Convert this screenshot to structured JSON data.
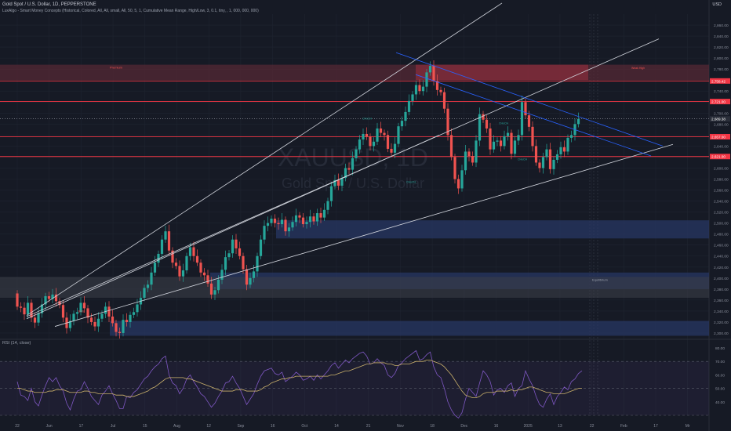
{
  "header": {
    "title": "Gold Spot / U.S. Dollar, 1D, PEPPERSTONE",
    "indicator": "LuxAlgo - Smart Money Concepts (Historical, Colored, All, All, small, All, 50, 5, 1, Cumulative Mean Range, High/Low, 3, 0.1, tiny, , 1, 000, 000, 000)",
    "currency": "USD"
  },
  "watermark": {
    "symbol": "XAUUSD, 1D",
    "name": "Gold Spot / U.S. Dollar"
  },
  "colors": {
    "background": "#161a25",
    "bull": "#26a69a",
    "bear": "#ef5350",
    "level_line": "#f23645",
    "demand_zone": "#2a3a6b",
    "supply_zone": "#5e2a35",
    "rsi_line": "#7e57c2",
    "rsi_ma": "#c9b06b"
  },
  "chart_data": [
    {
      "type": "candlestick",
      "title": "Gold Spot / U.S. Dollar, 1D, PEPPERSTONE",
      "ylim": [
        2290,
        2880
      ],
      "y_ticks": [
        2300,
        2320,
        2340,
        2360,
        2380,
        2400,
        2420,
        2440,
        2460,
        2480,
        2500,
        2520,
        2540,
        2560,
        2580,
        2600,
        2620,
        2640,
        2660,
        2680,
        2700,
        2720,
        2740,
        2760,
        2780,
        2800,
        2820,
        2840,
        2860
      ],
      "x_ticks": [
        "22",
        "Jun",
        "17",
        "Jul",
        "15",
        "Aug",
        "12",
        "Sep",
        "16",
        "Oct",
        "14",
        "21",
        "Nov",
        "18",
        "Dec",
        "16",
        "2025",
        "13",
        "22",
        "Feb",
        "17",
        "Mr"
      ],
      "price_labels": [
        {
          "label": "2,758.42",
          "value": 2758.4
        },
        {
          "label": "2,721.00",
          "value": 2721
        },
        {
          "label": "2,689.38",
          "value": 2689.4
        },
        {
          "label": "2,657.00",
          "value": 2657
        },
        {
          "label": "2,621.00",
          "value": 2621
        }
      ],
      "horizontal_levels": [
        2758.4,
        2721,
        2657,
        2621
      ],
      "zones": [
        {
          "kind": "supply",
          "top": 2788,
          "bottom": 2760,
          "start": "Oct 1",
          "label": "Premium"
        },
        {
          "kind": "demand",
          "top": 2505,
          "bottom": 2472,
          "start": "Sep 1"
        },
        {
          "kind": "demand",
          "top": 2410,
          "bottom": 2380,
          "start": "Aug 12"
        },
        {
          "kind": "demand",
          "top": 2322,
          "bottom": 2295,
          "start": "Jul 8"
        },
        {
          "kind": "equilibrium",
          "top": 2402,
          "bottom": 2364,
          "start": "May 22",
          "label": "Equilibrium"
        }
      ],
      "annotations": [
        "Premium",
        "Equilibrium",
        "Weak High",
        "CHoCH",
        "BOS"
      ],
      "candles": {
        "start_index": 0,
        "o": [
          2372,
          2348,
          2346,
          2334,
          2355,
          2328,
          2319,
          2336,
          2352,
          2367,
          2362,
          2370,
          2358,
          2351,
          2328,
          2309,
          2322,
          2335,
          2338,
          2355,
          2345,
          2328,
          2320,
          2312,
          2326,
          2335,
          2348,
          2330,
          2318,
          2302,
          2300,
          2324,
          2320,
          2333,
          2338,
          2352,
          2364,
          2382,
          2388,
          2410,
          2428,
          2444,
          2470,
          2485,
          2450,
          2428,
          2422,
          2403,
          2414,
          2440,
          2456,
          2440,
          2428,
          2410,
          2405,
          2390,
          2370,
          2378,
          2397,
          2415,
          2438,
          2445,
          2470,
          2454,
          2440,
          2416,
          2388,
          2400,
          2412,
          2440,
          2470,
          2495,
          2500,
          2508,
          2500,
          2498,
          2506,
          2485,
          2492,
          2502,
          2514,
          2510,
          2498,
          2502,
          2512,
          2503,
          2518,
          2510,
          2524,
          2540,
          2567,
          2578,
          2568,
          2582,
          2600,
          2597,
          2618,
          2634,
          2652,
          2662,
          2657,
          2640,
          2648,
          2672,
          2664,
          2660,
          2635,
          2628,
          2644,
          2676,
          2686,
          2702,
          2722,
          2734,
          2751,
          2740,
          2748,
          2774,
          2786,
          2758,
          2742,
          2738,
          2708,
          2660,
          2620,
          2580,
          2563,
          2596,
          2630,
          2622,
          2610,
          2650,
          2698,
          2688,
          2672,
          2634,
          2648,
          2650,
          2640,
          2658,
          2664,
          2626,
          2650,
          2660,
          2720,
          2696,
          2675,
          2640,
          2610,
          2600,
          2620,
          2634,
          2598,
          2615,
          2625,
          2638,
          2630,
          2655,
          2660,
          2680
        ],
        "c": [
          2348,
          2346,
          2334,
          2355,
          2328,
          2319,
          2336,
          2352,
          2367,
          2362,
          2370,
          2358,
          2351,
          2328,
          2309,
          2322,
          2335,
          2338,
          2355,
          2345,
          2328,
          2320,
          2312,
          2326,
          2335,
          2348,
          2330,
          2318,
          2302,
          2300,
          2324,
          2320,
          2333,
          2338,
          2352,
          2364,
          2382,
          2388,
          2410,
          2428,
          2444,
          2470,
          2485,
          2450,
          2428,
          2422,
          2403,
          2414,
          2440,
          2456,
          2440,
          2428,
          2410,
          2405,
          2390,
          2370,
          2378,
          2397,
          2415,
          2438,
          2445,
          2470,
          2454,
          2440,
          2416,
          2388,
          2400,
          2412,
          2440,
          2470,
          2495,
          2500,
          2508,
          2500,
          2498,
          2506,
          2485,
          2492,
          2502,
          2514,
          2510,
          2498,
          2502,
          2512,
          2503,
          2518,
          2510,
          2524,
          2540,
          2567,
          2578,
          2568,
          2582,
          2600,
          2597,
          2618,
          2634,
          2652,
          2662,
          2657,
          2640,
          2648,
          2672,
          2664,
          2660,
          2635,
          2628,
          2644,
          2676,
          2686,
          2702,
          2722,
          2734,
          2751,
          2740,
          2748,
          2774,
          2786,
          2758,
          2742,
          2738,
          2708,
          2660,
          2620,
          2580,
          2563,
          2596,
          2630,
          2622,
          2610,
          2650,
          2698,
          2688,
          2672,
          2634,
          2648,
          2650,
          2640,
          2658,
          2664,
          2626,
          2650,
          2660,
          2720,
          2696,
          2675,
          2640,
          2610,
          2600,
          2620,
          2634,
          2598,
          2615,
          2625,
          2638,
          2630,
          2655,
          2660,
          2680,
          2689
        ]
      }
    },
    {
      "type": "line",
      "title": "RSI (14, close)",
      "ylim": [
        30,
        80
      ],
      "y_ticks": [
        40,
        50,
        60,
        70,
        80
      ],
      "bands": [
        30,
        70
      ],
      "series": [
        {
          "name": "RSI",
          "values": [
            55,
            45,
            44,
            41,
            50,
            40,
            37,
            45,
            52,
            58,
            55,
            58,
            52,
            48,
            39,
            34,
            42,
            48,
            49,
            55,
            50,
            44,
            41,
            38,
            45,
            48,
            52,
            46,
            41,
            35,
            35,
            44,
            43,
            47,
            49,
            53,
            57,
            59,
            63,
            66,
            68,
            72,
            74,
            60,
            54,
            52,
            46,
            50,
            57,
            60,
            55,
            51,
            46,
            44,
            40,
            36,
            39,
            44,
            48,
            54,
            55,
            59,
            54,
            50,
            44,
            38,
            42,
            46,
            53,
            59,
            63,
            64,
            65,
            61,
            60,
            62,
            55,
            57,
            59,
            62,
            60,
            56,
            57,
            59,
            56,
            60,
            57,
            60,
            63,
            67,
            69,
            65,
            68,
            71,
            69,
            72,
            74,
            76,
            77,
            74,
            68,
            69,
            72,
            69,
            67,
            60,
            58,
            61,
            67,
            69,
            72,
            74,
            76,
            78,
            71,
            72,
            75,
            77,
            66,
            60,
            58,
            50,
            40,
            34,
            30,
            28,
            32,
            42,
            50,
            47,
            44,
            54,
            63,
            60,
            55,
            45,
            49,
            50,
            47,
            52,
            54,
            44,
            50,
            52,
            63,
            57,
            52,
            44,
            38,
            36,
            42,
            46,
            38,
            44,
            47,
            51,
            49,
            55,
            57,
            61,
            63
          ]
        },
        {
          "name": "RSI-based MA",
          "values": [
            50,
            50,
            49,
            48,
            48,
            47,
            47,
            47,
            47,
            48,
            48,
            49,
            49,
            49,
            48,
            47,
            47,
            47,
            47,
            48,
            48,
            47,
            47,
            46,
            46,
            46,
            46,
            46,
            45,
            45,
            45,
            44,
            44,
            44,
            45,
            46,
            47,
            48,
            50,
            51,
            53,
            55,
            57,
            58,
            58,
            58,
            58,
            58,
            57,
            57,
            56,
            55,
            54,
            53,
            52,
            51,
            50,
            49,
            48,
            48,
            48,
            48,
            49,
            49,
            49,
            48,
            48,
            48,
            48,
            49,
            51,
            52,
            54,
            55,
            56,
            57,
            57,
            58,
            58,
            59,
            59,
            59,
            59,
            59,
            59,
            59,
            59,
            59,
            59,
            60,
            60,
            61,
            62,
            63,
            63,
            64,
            65,
            66,
            67,
            68,
            68,
            69,
            69,
            69,
            69,
            68,
            68,
            67,
            67,
            68,
            68,
            68,
            69,
            70,
            70,
            70,
            71,
            71,
            70,
            69,
            68,
            66,
            63,
            60,
            56,
            52,
            48,
            45,
            44,
            43,
            43,
            44,
            46,
            47,
            47,
            47,
            48,
            48,
            48,
            48,
            49,
            48,
            49,
            49,
            50,
            51,
            51,
            50,
            49,
            48,
            47,
            47,
            46,
            46,
            46,
            46,
            47,
            48,
            49,
            50,
            50
          ]
        }
      ]
    }
  ]
}
